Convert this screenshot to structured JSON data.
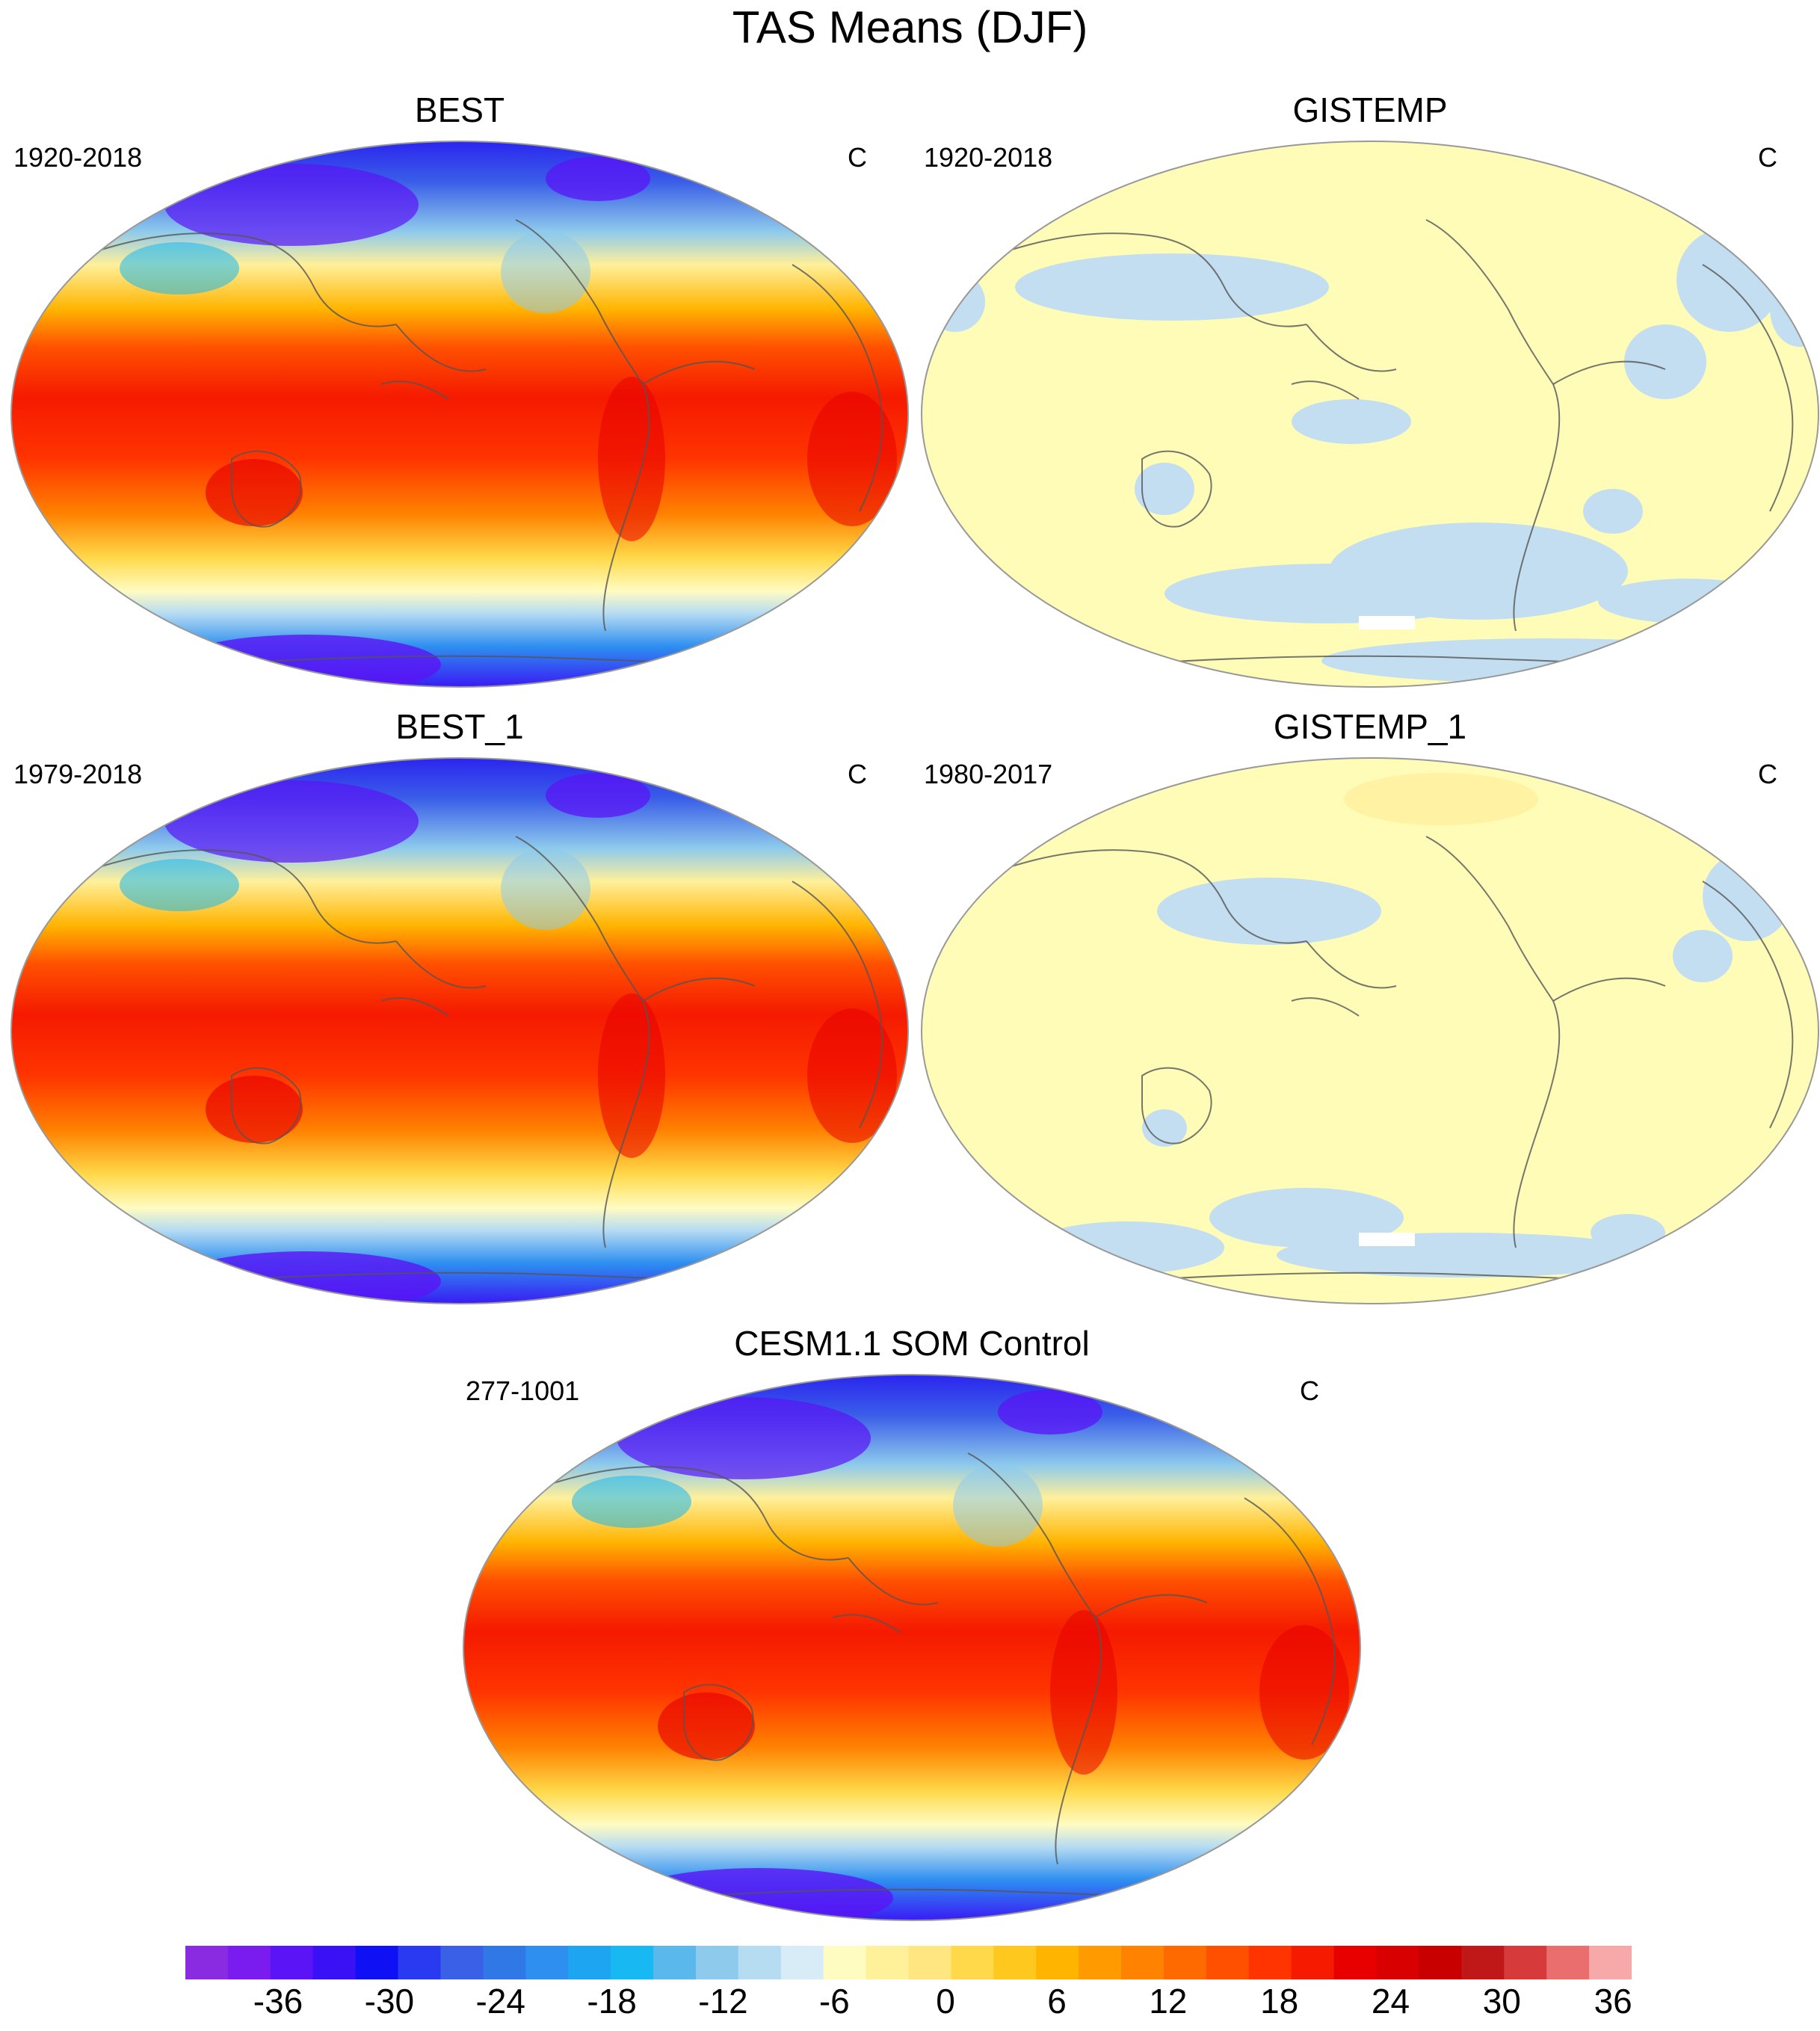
{
  "title": "TAS Means (DJF)",
  "panels": [
    {
      "id": "best",
      "title": "BEST",
      "period": "1920-2018",
      "units": "C",
      "style": "full"
    },
    {
      "id": "gistemp",
      "title": "GISTEMP",
      "period": "1920-2018",
      "units": "C",
      "style": "diff"
    },
    {
      "id": "best_1",
      "title": "BEST_1",
      "period": "1979-2018",
      "units": "C",
      "style": "full"
    },
    {
      "id": "gistemp_1",
      "title": "GISTEMP_1",
      "period": "1980-2017",
      "units": "C",
      "style": "diff"
    },
    {
      "id": "cesm",
      "title": "CESM1.1 SOM Control",
      "period": "277-1001",
      "units": "C",
      "style": "full"
    }
  ],
  "colorbar": {
    "colors": [
      "#8a2be2",
      "#7a1cf0",
      "#5a14f5",
      "#3a10f5",
      "#1010f5",
      "#2a3af0",
      "#3a60e8",
      "#2f78e6",
      "#2e8ff0",
      "#1ea5f2",
      "#18b8f2",
      "#5ab8ec",
      "#8ecaec",
      "#b6dcf2",
      "#d8ecf8",
      "#fffcc2",
      "#fff09a",
      "#ffe680",
      "#ffd94a",
      "#ffc81e",
      "#ffb400",
      "#ff9a00",
      "#ff8200",
      "#ff6a00",
      "#ff5000",
      "#ff3400",
      "#f51a00",
      "#e80000",
      "#d80000",
      "#c80000",
      "#c01818",
      "#d63a3a",
      "#ea6e6e",
      "#f7a8a8"
    ],
    "labels": [
      "-36",
      "-30",
      "-24",
      "-18",
      "-12",
      "-6",
      "0",
      "6",
      "12",
      "18",
      "24",
      "30",
      "36"
    ],
    "label_positions": [
      2.5,
      5.5,
      8.5,
      11.5,
      14.5,
      17.5,
      20.5,
      23.5,
      26.5,
      29.5,
      32.5,
      35.5,
      38.5
    ]
  },
  "colors": {
    "ocean_near_zero": "#fffcb8",
    "cool_anomaly": "#c2def0",
    "coastline": "#555555"
  }
}
